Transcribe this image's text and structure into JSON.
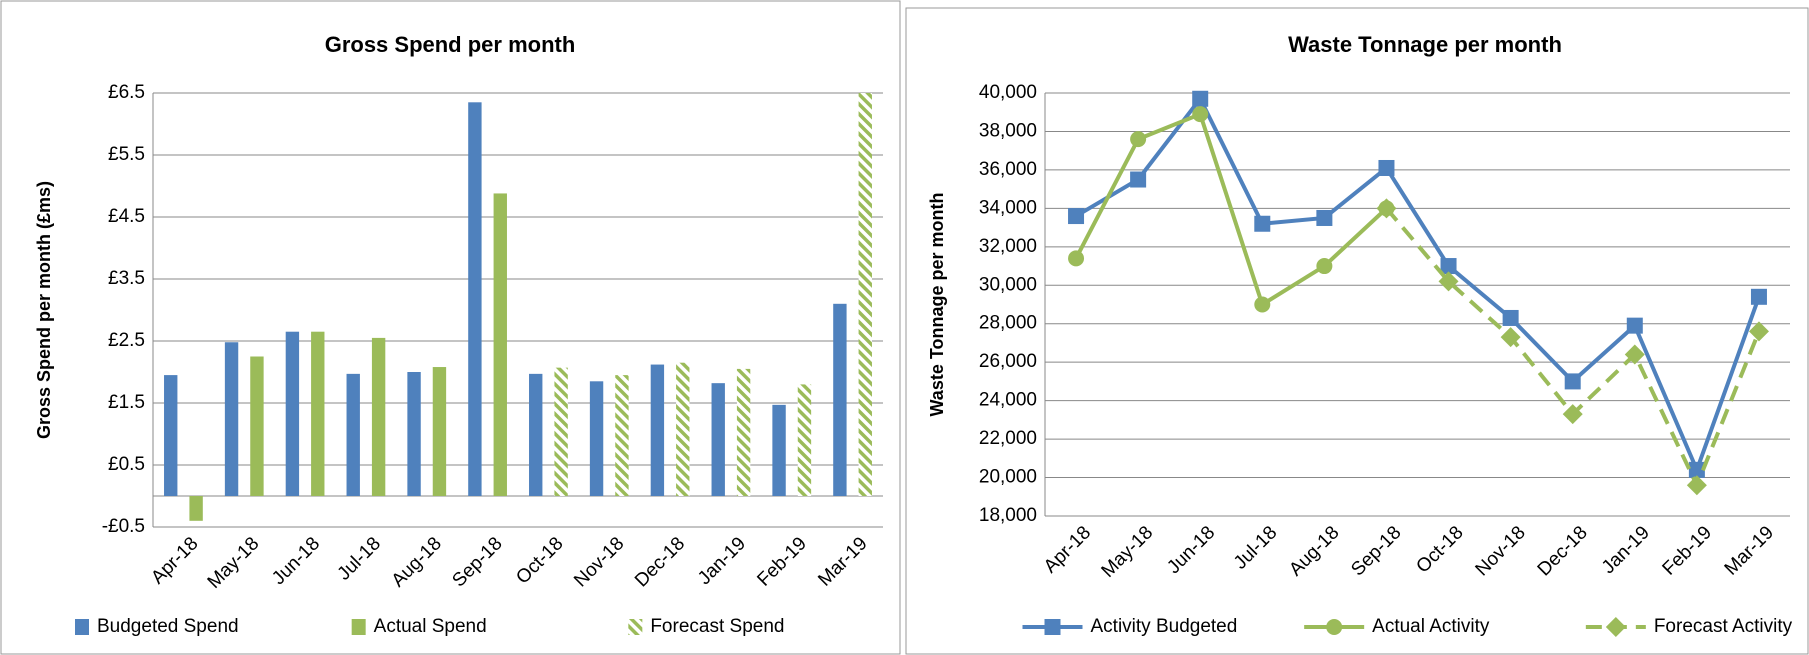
{
  "chart_data": [
    {
      "type": "bar",
      "title": "Gross Spend per month",
      "y_label": "Gross Spend per month (£ms)",
      "categories": [
        "Apr-18",
        "May-18",
        "Jun-18",
        "Jul-18",
        "Aug-18",
        "Sep-18",
        "Oct-18",
        "Nov-18",
        "Dec-18",
        "Jan-19",
        "Feb-19",
        "Mar-19"
      ],
      "series": [
        {
          "name": "Budgeted Spend",
          "color": "#4f81bd",
          "values": [
            1.95,
            2.48,
            2.65,
            1.97,
            2.0,
            6.35,
            1.97,
            1.85,
            2.12,
            1.82,
            1.47,
            3.1
          ]
        },
        {
          "name": "Actual Spend",
          "color": "#9bbb59",
          "values": [
            -0.4,
            2.25,
            2.65,
            2.55,
            2.08,
            4.88,
            null,
            null,
            null,
            null,
            null,
            null
          ]
        },
        {
          "name": "Forecast Spend",
          "color": "#9bbb59",
          "hatch": true,
          "values": [
            null,
            null,
            null,
            null,
            null,
            null,
            2.07,
            1.95,
            2.15,
            2.05,
            1.8,
            6.5
          ]
        }
      ],
      "ylim": [
        -0.5,
        6.5
      ],
      "yticks": [
        {
          "value": -0.5,
          "label": "-£0.5"
        },
        {
          "value": 0.5,
          "label": "£0.5"
        },
        {
          "value": 1.5,
          "label": "£1.5"
        },
        {
          "value": 2.5,
          "label": "£2.5"
        },
        {
          "value": 3.5,
          "label": "£3.5"
        },
        {
          "value": 4.5,
          "label": "£4.5"
        },
        {
          "value": 5.5,
          "label": "£5.5"
        },
        {
          "value": 6.5,
          "label": "£6.5"
        }
      ],
      "grid": true
    },
    {
      "type": "line",
      "title": "Waste Tonnage per month",
      "y_label": "Waste Tonnage  per month",
      "categories": [
        "Apr-18",
        "May-18",
        "Jun-18",
        "Jul-18",
        "Aug-18",
        "Sep-18",
        "Oct-18",
        "Nov-18",
        "Dec-18",
        "Jan-19",
        "Feb-19",
        "Mar-19"
      ],
      "series": [
        {
          "name": "Activity Budgeted",
          "color": "#4f81bd",
          "marker": "square",
          "values": [
            33600,
            35500,
            39700,
            33200,
            33500,
            36100,
            31000,
            28300,
            25000,
            27900,
            20400,
            29400
          ]
        },
        {
          "name": "Actual Activity",
          "color": "#9bbb59",
          "marker": "circle",
          "values": [
            31400,
            37600,
            38900,
            29000,
            31000,
            34000,
            null,
            null,
            null,
            null,
            null,
            null
          ]
        },
        {
          "name": "Forecast Activity",
          "color": "#9bbb59",
          "marker": "diamond",
          "dashed": true,
          "values": [
            null,
            null,
            null,
            null,
            null,
            34000,
            30200,
            27300,
            23300,
            26400,
            19600,
            27600
          ]
        }
      ],
      "ylim": [
        18000,
        40000
      ],
      "yticks": [
        {
          "value": 18000,
          "label": "18,000"
        },
        {
          "value": 20000,
          "label": "20,000"
        },
        {
          "value": 22000,
          "label": "22,000"
        },
        {
          "value": 24000,
          "label": "24,000"
        },
        {
          "value": 26000,
          "label": "26,000"
        },
        {
          "value": 28000,
          "label": "28,000"
        },
        {
          "value": 30000,
          "label": "30,000"
        },
        {
          "value": 32000,
          "label": "32,000"
        },
        {
          "value": 34000,
          "label": "34,000"
        },
        {
          "value": 36000,
          "label": "36,000"
        },
        {
          "value": 38000,
          "label": "38,000"
        },
        {
          "value": 40000,
          "label": "40,000"
        }
      ],
      "grid": true
    }
  ]
}
